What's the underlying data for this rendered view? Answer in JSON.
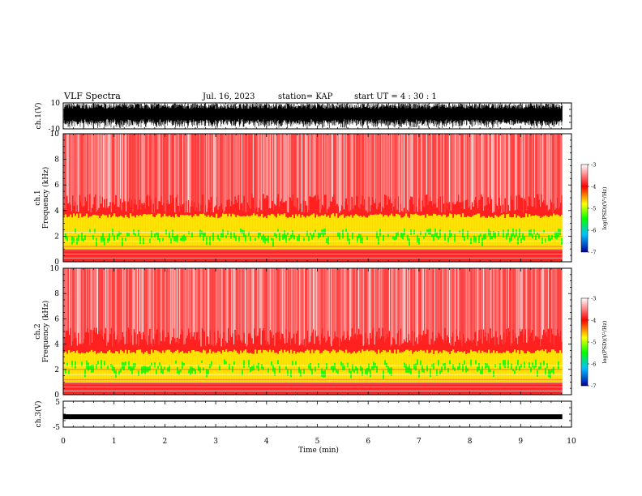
{
  "header": {
    "title": "VLF Spectra",
    "date": "Jul. 16, 2023",
    "station": "station= KAP",
    "start": "start UT = 4 : 30 : 1"
  },
  "colors": {
    "background": "#ffffff",
    "waveform": "#000000",
    "spectrum_high": "#ff0000",
    "spectrum_mid": "#ffff00",
    "spectrum_low": "#00ff00",
    "spectrum_lowest": "#0000ff"
  },
  "chart_data": [
    {
      "type": "line",
      "name": "ch1-waveform",
      "ylabel": "ch.1(V)",
      "ylim": [
        -10,
        10
      ],
      "yticks": [
        "10",
        "-10"
      ],
      "xlim": [
        0,
        10
      ],
      "x_extent": 9.82,
      "amplitude_range": [
        -10,
        10
      ]
    },
    {
      "type": "heatmap",
      "name": "ch1-spectrogram",
      "ylabel": "ch.1\nFrequency (kHz)",
      "ylim": [
        0,
        10
      ],
      "yticks": [
        "0",
        "2",
        "4",
        "6",
        "8",
        "10"
      ],
      "xlim": [
        0,
        10
      ],
      "x_extent": 9.82,
      "colorbar": {
        "label": "log(PSD)(V²/Hz)",
        "range": [
          -7,
          -3
        ],
        "ticks": [
          "-3",
          "-4",
          "-5",
          "-6",
          "-7"
        ]
      },
      "bands_khz": {
        "strong_emission_top": 3.6,
        "green_core_top": 2.6,
        "hum_lines_top": 1.0
      }
    },
    {
      "type": "heatmap",
      "name": "ch2-spectrogram",
      "ylabel": "ch.2\nFrequency (kHz)",
      "ylim": [
        0,
        10
      ],
      "yticks": [
        "0",
        "2",
        "4",
        "6",
        "8",
        "10"
      ],
      "xlim": [
        0,
        10
      ],
      "x_extent": 9.82,
      "colorbar": {
        "label": "log(PSD)(V²/Hz)",
        "range": [
          -7,
          -3
        ],
        "ticks": [
          "-3",
          "-4",
          "-5",
          "-6",
          "-7"
        ]
      },
      "bands_khz": {
        "strong_emission_top": 3.4,
        "green_core_top": 2.8,
        "hum_lines_top": 1.0
      }
    },
    {
      "type": "line",
      "name": "ch3-waveform",
      "ylabel": "ch.3(V)",
      "ylim": [
        -5,
        5
      ],
      "yticks": [
        "5",
        "0",
        "-5"
      ],
      "xlim": [
        0,
        10
      ],
      "x_extent": 9.82,
      "level": -1,
      "xticks": [
        "0",
        "1",
        "2",
        "3",
        "4",
        "5",
        "6",
        "7",
        "8",
        "9",
        "10"
      ],
      "xlabel": "Time (min)"
    }
  ]
}
